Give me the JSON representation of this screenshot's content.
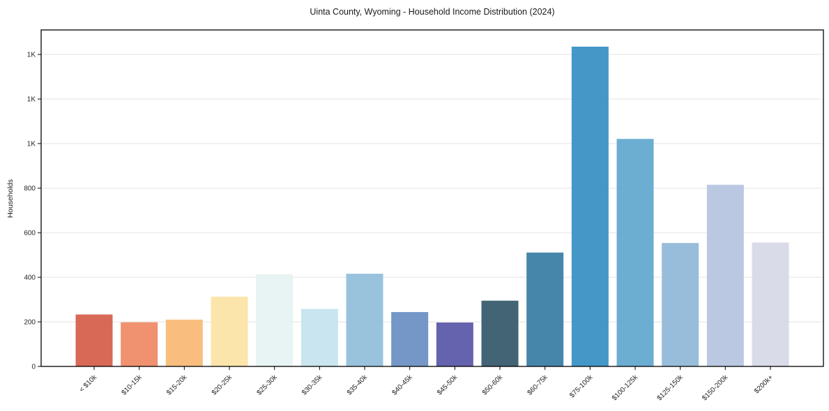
{
  "chart_data": {
    "type": "bar",
    "title": "Uinta County, Wyoming - Household Income Distribution (2024)",
    "xlabel": "",
    "ylabel": "Households",
    "categories": [
      "< $10k",
      "$10-15k",
      "$15-20k",
      "$20-25k",
      "$25-30k",
      "$30-35k",
      "$35-40k",
      "$40-45k",
      "$45-50k",
      "$50-60k",
      "$60-75k",
      "$75-100k",
      "$100-125k",
      "$125-150k",
      "$150-200k",
      "$200k+"
    ],
    "values": [
      233,
      198,
      210,
      313,
      414,
      258,
      416,
      244,
      197,
      295,
      511,
      1435,
      1021,
      554,
      815,
      556
    ],
    "bar_colors": [
      "#d6604d",
      "#ef8a66",
      "#f9ba76",
      "#fce3a6",
      "#e7f2f2",
      "#c6e3ee",
      "#93bfdb",
      "#6b90c5",
      "#5b59a8",
      "#365a6c",
      "#3b7ea6",
      "#3990c5",
      "#63a8cf",
      "#92b9d8",
      "#b6c5e0",
      "#d7d9e7"
    ],
    "yticks": [
      {
        "value": 0,
        "label": "0"
      },
      {
        "value": 200,
        "label": "200"
      },
      {
        "value": 400,
        "label": "400"
      },
      {
        "value": 600,
        "label": "600"
      },
      {
        "value": 800,
        "label": "800"
      },
      {
        "value": 1000,
        "label": "1K"
      },
      {
        "value": 1200,
        "label": "1K"
      },
      {
        "value": 1400,
        "label": "1K"
      }
    ],
    "ylim": [
      0,
      1510
    ],
    "grid": "horizontal",
    "legend": "none",
    "x_tick_rotation_deg": 45
  },
  "style": {
    "background": "#ffffff",
    "axis_color": "#000000",
    "text_color": "#262626",
    "grid_color": "#e3e3e3"
  }
}
